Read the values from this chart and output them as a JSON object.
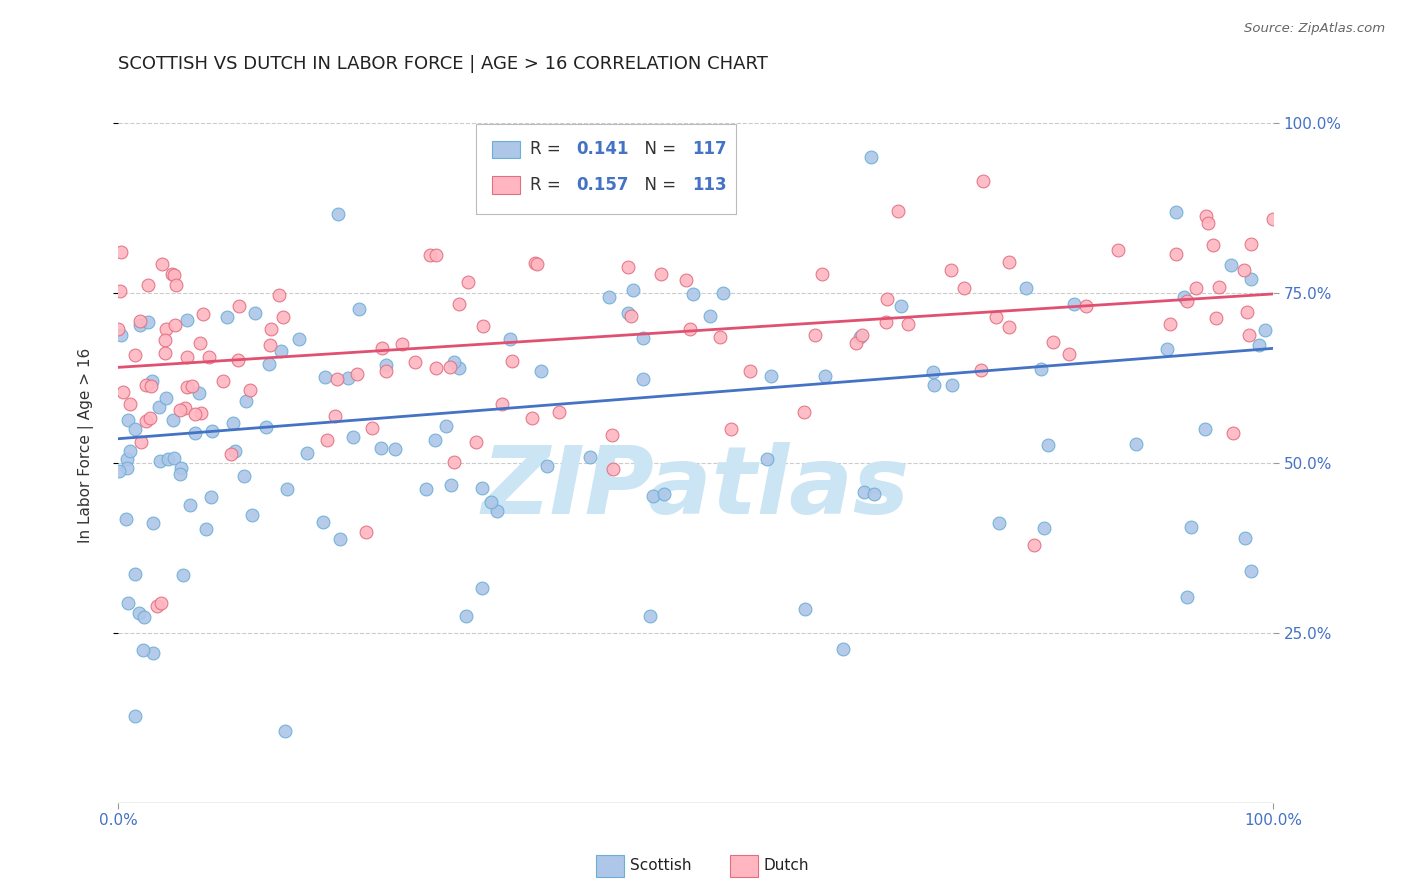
{
  "title": "SCOTTISH VS DUTCH IN LABOR FORCE | AGE > 16 CORRELATION CHART",
  "source": "Source: ZipAtlas.com",
  "ylabel": "In Labor Force | Age > 16",
  "xlim": [
    0.0,
    1.0
  ],
  "ylim": [
    0.0,
    1.05
  ],
  "xtick_labels": [
    "0.0%",
    "100.0%"
  ],
  "ytick_positions": [
    0.25,
    0.5,
    0.75,
    1.0
  ],
  "ytick_labels": [
    "25.0%",
    "50.0%",
    "75.0%",
    "100.0%"
  ],
  "scatter_blue_color": "#aec6e8",
  "scatter_blue_edge": "#6baed6",
  "scatter_pink_color": "#ffb6c1",
  "scatter_pink_edge": "#e07080",
  "trendline_blue_color": "#4472c4",
  "trendline_pink_color": "#e05070",
  "trendline_blue": [
    0.0,
    0.535,
    1.0,
    0.668
  ],
  "trendline_pink": [
    0.0,
    0.64,
    1.0,
    0.748
  ],
  "watermark": "ZIPatlas",
  "watermark_color": "#cce5f5",
  "background_color": "#ffffff",
  "grid_color": "#cccccc",
  "title_color": "#222222",
  "source_color": "#666666",
  "tick_color": "#4472c4",
  "ylabel_color": "#333333",
  "R_blue": "0.141",
  "N_blue": "117",
  "R_pink": "0.157",
  "N_pink": "113",
  "legend_text_color": "#333333",
  "legend_value_color": "#4472c4",
  "blue_seed": 42,
  "pink_seed": 99
}
